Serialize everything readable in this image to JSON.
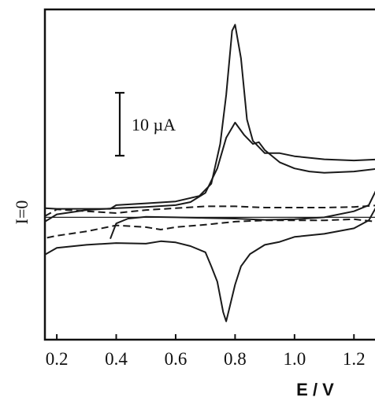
{
  "chart_data": {
    "type": "line",
    "title": "",
    "xlabel": "E / V",
    "ylabel": "I=0",
    "xlim": [
      0.16,
      1.3
    ],
    "x_ticks": [
      0.2,
      0.4,
      0.6,
      0.8,
      1.0,
      1.2
    ],
    "x_tick_labels": [
      "0.2",
      "0.4",
      "0.6",
      "0.8",
      "1.0",
      "1.2"
    ],
    "y_unit": "µA",
    "ylim": [
      -20,
      34
    ],
    "scale_bar": {
      "label": "10 µA",
      "value": 10
    },
    "grid": false,
    "legend": "none",
    "series": [
      {
        "style": "solid",
        "x": [
          0.16,
          0.2,
          0.3,
          0.38,
          0.4,
          0.5,
          0.6,
          0.68,
          0.72,
          0.75,
          0.77,
          0.79,
          0.8,
          0.82,
          0.84,
          0.86,
          0.9,
          0.95,
          1.0,
          1.1,
          1.2,
          1.29,
          1.29,
          1.25,
          1.2,
          1.1,
          1.0,
          0.95,
          0.9,
          0.85,
          0.82,
          0.8,
          0.78,
          0.77,
          0.76,
          0.74,
          0.72,
          0.7,
          0.65,
          0.6,
          0.55,
          0.5,
          0.4,
          0.3,
          0.2,
          0.16
        ],
        "y": [
          1.5,
          1.4,
          1.4,
          1.4,
          2.0,
          2.3,
          2.6,
          3.5,
          5.5,
          12.0,
          20.0,
          30.5,
          31.5,
          26.0,
          16.0,
          12.5,
          10.5,
          10.5,
          10.0,
          9.5,
          9.3,
          9.5,
          3.0,
          -0.5,
          -1.8,
          -2.7,
          -3.2,
          -4.0,
          -4.5,
          -6.0,
          -8.0,
          -11.0,
          -15.0,
          -17.0,
          -15.5,
          -10.5,
          -8.0,
          -5.7,
          -4.7,
          -4.1,
          -3.9,
          -4.3,
          -4.2,
          -4.5,
          -5.0,
          -6.1
        ]
      },
      {
        "style": "solid",
        "x": [
          0.16,
          0.2,
          0.3,
          0.4,
          0.5,
          0.6,
          0.65,
          0.7,
          0.74,
          0.77,
          0.8,
          0.83,
          0.86,
          0.88,
          0.9,
          0.95,
          1.0,
          1.05,
          1.1,
          1.2,
          1.29
        ],
        "y": [
          -0.7,
          0.5,
          1.2,
          1.5,
          1.7,
          2.0,
          2.5,
          4.0,
          8.0,
          13.0,
          15.5,
          13.5,
          12.0,
          12.3,
          11.0,
          9.0,
          8.0,
          7.5,
          7.3,
          7.5,
          8.0
        ]
      },
      {
        "style": "solid",
        "x": [
          0.38,
          0.4,
          0.44,
          0.5,
          0.6,
          0.7,
          0.8,
          0.9,
          1.0,
          1.1,
          1.2,
          1.25,
          1.28,
          1.29
        ],
        "y": [
          -3.5,
          -1.0,
          -0.2,
          0.1,
          0.0,
          -0.1,
          -0.2,
          -0.4,
          -0.3,
          0.0,
          1.0,
          2.0,
          5.0,
          9.5
        ]
      },
      {
        "style": "dashed",
        "x": [
          0.16,
          0.2,
          0.3,
          0.4,
          0.5,
          0.6,
          0.7,
          0.8,
          0.9,
          1.0,
          1.1,
          1.2,
          1.29,
          1.29,
          1.2,
          1.1,
          1.0,
          0.9,
          0.8,
          0.7,
          0.6,
          0.55,
          0.5,
          0.4,
          0.3,
          0.2,
          0.16
        ],
        "y": [
          0.2,
          1.3,
          1.0,
          0.7,
          1.2,
          1.5,
          1.8,
          1.8,
          1.6,
          1.6,
          1.6,
          1.7,
          2.0,
          -0.8,
          -0.3,
          -0.5,
          -0.5,
          -0.5,
          -0.7,
          -1.2,
          -1.6,
          -2.0,
          -1.6,
          -1.3,
          -2.3,
          -3.0,
          -3.4
        ]
      },
      {
        "style": "thin",
        "x": [
          0.16,
          1.29
        ],
        "y": [
          0.0,
          0.0
        ]
      }
    ]
  }
}
